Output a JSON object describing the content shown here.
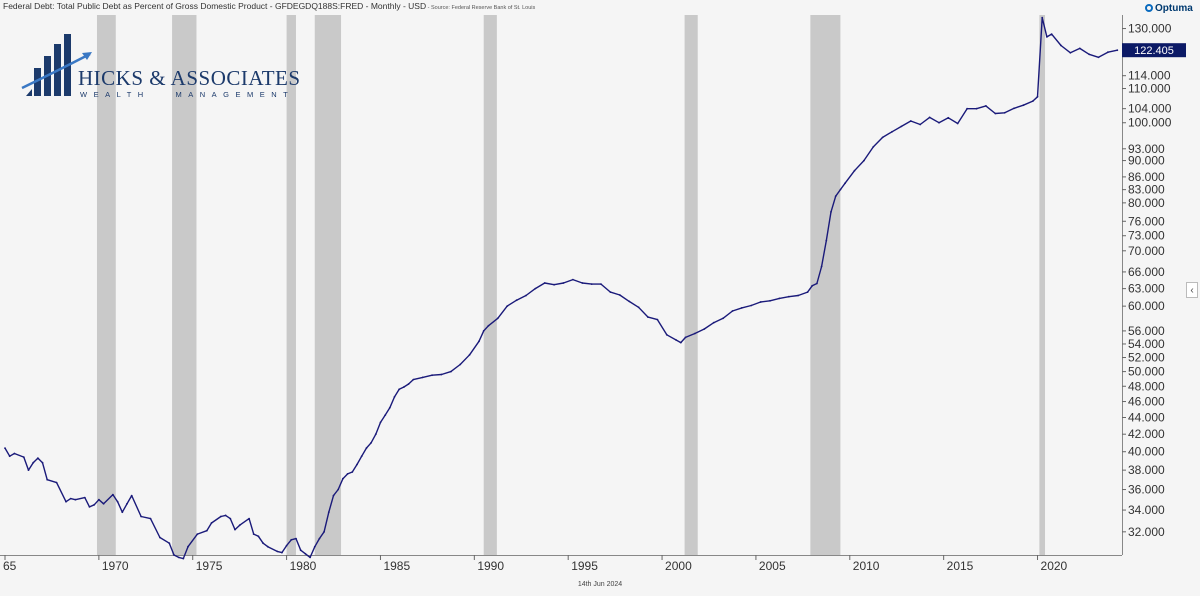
{
  "header": {
    "title": "Federal Debt: Total Public Debt as Percent of Gross Domestic Product - GFDEGDQ188S:FRED - Monthly - USD",
    "source": " - Source: Federal Reserve Bank of St. Louis",
    "brand": "Optuma"
  },
  "logo": {
    "name": "HICKS & ASSOCIATES",
    "tagline": "WEALTH   MANAGEMENT"
  },
  "footer": {
    "date": "14th Jun 2024"
  },
  "colors": {
    "line": "#1a1a7a",
    "recession": "#c9c9c9",
    "background": "#f5f5f5",
    "last_price_bg": "#0c1a66"
  },
  "chart_data": {
    "type": "line",
    "title": "Federal Debt: Total Public Debt as Percent of Gross Domestic Product",
    "y_scale": "log",
    "ylim": [
      30,
      135
    ],
    "xlim": [
      1965,
      2024.5
    ],
    "x_ticks": [
      "65",
      "1970",
      "1975",
      "1980",
      "1985",
      "1990",
      "1995",
      "2000",
      "2005",
      "2010",
      "2015",
      "2020"
    ],
    "y_ticks": [
      "130.000",
      "114.000",
      "110.000",
      "104.000",
      "100.000",
      "93.000",
      "90.000",
      "86.000",
      "83.000",
      "80.000",
      "76.000",
      "73.000",
      "70.000",
      "66.000",
      "63.000",
      "60.000",
      "56.000",
      "54.000",
      "52.000",
      "50.000",
      "48.000",
      "46.000",
      "44.000",
      "42.000",
      "40.000",
      "38.000",
      "36.000",
      "34.000",
      "32.000"
    ],
    "last_value": "122.405",
    "recessions": [
      [
        1969.9,
        1970.9
      ],
      [
        1973.9,
        1975.2
      ],
      [
        1980.0,
        1980.5
      ],
      [
        1981.5,
        1982.9
      ],
      [
        1990.5,
        1991.2
      ],
      [
        2001.2,
        2001.9
      ],
      [
        2007.9,
        2009.5
      ],
      [
        2020.1,
        2020.4
      ]
    ],
    "series": [
      {
        "points": [
          [
            1965.0,
            40.4
          ],
          [
            1965.25,
            39.5
          ],
          [
            1965.5,
            39.8
          ],
          [
            1966.0,
            39.4
          ],
          [
            1966.25,
            38.0
          ],
          [
            1966.5,
            38.8
          ],
          [
            1966.75,
            39.3
          ],
          [
            1967.0,
            38.8
          ],
          [
            1967.25,
            37.0
          ],
          [
            1967.75,
            36.7
          ],
          [
            1968.25,
            34.8
          ],
          [
            1968.5,
            35.1
          ],
          [
            1968.75,
            35.0
          ],
          [
            1969.25,
            35.2
          ],
          [
            1969.5,
            34.3
          ],
          [
            1969.75,
            34.5
          ],
          [
            1970.0,
            35.0
          ],
          [
            1970.25,
            34.6
          ],
          [
            1970.75,
            35.5
          ],
          [
            1971.0,
            34.8
          ],
          [
            1971.25,
            33.8
          ],
          [
            1971.5,
            34.6
          ],
          [
            1971.75,
            35.4
          ],
          [
            1972.25,
            33.4
          ],
          [
            1972.75,
            33.2
          ],
          [
            1973.25,
            31.5
          ],
          [
            1973.75,
            31.0
          ],
          [
            1974.0,
            30.0
          ],
          [
            1974.25,
            29.8
          ],
          [
            1974.5,
            29.7
          ],
          [
            1974.75,
            30.7
          ],
          [
            1975.25,
            31.8
          ],
          [
            1975.75,
            32.1
          ],
          [
            1976.0,
            32.8
          ],
          [
            1976.5,
            33.4
          ],
          [
            1976.75,
            33.5
          ],
          [
            1977.0,
            33.2
          ],
          [
            1977.25,
            32.2
          ],
          [
            1977.5,
            32.6
          ],
          [
            1978.0,
            33.2
          ],
          [
            1978.25,
            31.8
          ],
          [
            1978.5,
            31.6
          ],
          [
            1978.75,
            31.0
          ],
          [
            1979.0,
            30.7
          ],
          [
            1979.5,
            30.3
          ],
          [
            1979.75,
            30.2
          ],
          [
            1980.0,
            30.8
          ],
          [
            1980.25,
            31.3
          ],
          [
            1980.5,
            31.4
          ],
          [
            1980.75,
            30.4
          ],
          [
            1981.0,
            30.1
          ],
          [
            1981.25,
            29.8
          ],
          [
            1981.5,
            30.7
          ],
          [
            1981.75,
            31.4
          ],
          [
            1982.0,
            32.0
          ],
          [
            1982.25,
            33.8
          ],
          [
            1982.5,
            35.4
          ],
          [
            1982.75,
            36.0
          ],
          [
            1983.0,
            37.1
          ],
          [
            1983.25,
            37.6
          ],
          [
            1983.5,
            37.8
          ],
          [
            1983.75,
            38.6
          ],
          [
            1984.0,
            39.5
          ],
          [
            1984.25,
            40.4
          ],
          [
            1984.5,
            41.0
          ],
          [
            1984.75,
            42.0
          ],
          [
            1985.0,
            43.4
          ],
          [
            1985.25,
            44.3
          ],
          [
            1985.5,
            45.2
          ],
          [
            1985.75,
            46.6
          ],
          [
            1986.0,
            47.6
          ],
          [
            1986.25,
            47.9
          ],
          [
            1986.5,
            48.3
          ],
          [
            1986.75,
            48.9
          ],
          [
            1987.25,
            49.2
          ],
          [
            1987.75,
            49.5
          ],
          [
            1988.25,
            49.6
          ],
          [
            1988.75,
            50.0
          ],
          [
            1989.25,
            51.0
          ],
          [
            1989.75,
            52.4
          ],
          [
            1990.25,
            54.4
          ],
          [
            1990.5,
            56.0
          ],
          [
            1990.75,
            56.8
          ],
          [
            1991.25,
            58.0
          ],
          [
            1991.75,
            60.0
          ],
          [
            1992.25,
            61.0
          ],
          [
            1992.75,
            61.8
          ],
          [
            1993.25,
            63.0
          ],
          [
            1993.75,
            64.0
          ],
          [
            1994.25,
            63.7
          ],
          [
            1994.75,
            64.0
          ],
          [
            1995.25,
            64.6
          ],
          [
            1995.75,
            64.0
          ],
          [
            1996.25,
            63.8
          ],
          [
            1996.75,
            63.8
          ],
          [
            1997.25,
            62.4
          ],
          [
            1997.75,
            61.9
          ],
          [
            1998.25,
            60.8
          ],
          [
            1998.75,
            59.8
          ],
          [
            1999.25,
            58.2
          ],
          [
            1999.75,
            57.8
          ],
          [
            2000.25,
            55.4
          ],
          [
            2000.75,
            54.6
          ],
          [
            2001.0,
            54.2
          ],
          [
            2001.25,
            55.0
          ],
          [
            2001.75,
            55.6
          ],
          [
            2002.25,
            56.3
          ],
          [
            2002.75,
            57.3
          ],
          [
            2003.25,
            58.0
          ],
          [
            2003.75,
            59.2
          ],
          [
            2004.25,
            59.7
          ],
          [
            2004.75,
            60.1
          ],
          [
            2005.25,
            60.7
          ],
          [
            2005.75,
            60.9
          ],
          [
            2006.25,
            61.3
          ],
          [
            2006.75,
            61.6
          ],
          [
            2007.25,
            61.8
          ],
          [
            2007.75,
            62.4
          ],
          [
            2008.0,
            63.5
          ],
          [
            2008.25,
            63.9
          ],
          [
            2008.5,
            67.0
          ],
          [
            2008.75,
            72.0
          ],
          [
            2009.0,
            78.0
          ],
          [
            2009.25,
            81.5
          ],
          [
            2009.5,
            83.0
          ],
          [
            2009.75,
            84.5
          ],
          [
            2010.25,
            87.5
          ],
          [
            2010.75,
            90.0
          ],
          [
            2011.25,
            93.5
          ],
          [
            2011.75,
            96.0
          ],
          [
            2012.25,
            97.5
          ],
          [
            2012.75,
            99.0
          ],
          [
            2013.25,
            100.5
          ],
          [
            2013.75,
            99.5
          ],
          [
            2014.25,
            101.5
          ],
          [
            2014.75,
            100.0
          ],
          [
            2015.25,
            101.4
          ],
          [
            2015.75,
            99.8
          ],
          [
            2016.25,
            104.0
          ],
          [
            2016.75,
            104.0
          ],
          [
            2017.25,
            104.8
          ],
          [
            2017.75,
            102.6
          ],
          [
            2018.25,
            102.8
          ],
          [
            2018.75,
            104.1
          ],
          [
            2019.25,
            105.0
          ],
          [
            2019.75,
            106.2
          ],
          [
            2020.0,
            107.5
          ],
          [
            2020.25,
            134.0
          ],
          [
            2020.5,
            127.0
          ],
          [
            2020.75,
            128.0
          ],
          [
            2021.25,
            124.0
          ],
          [
            2021.75,
            121.5
          ],
          [
            2022.25,
            123.0
          ],
          [
            2022.75,
            121.0
          ],
          [
            2023.25,
            120.0
          ],
          [
            2023.75,
            121.7
          ],
          [
            2024.25,
            122.4
          ]
        ]
      }
    ]
  }
}
